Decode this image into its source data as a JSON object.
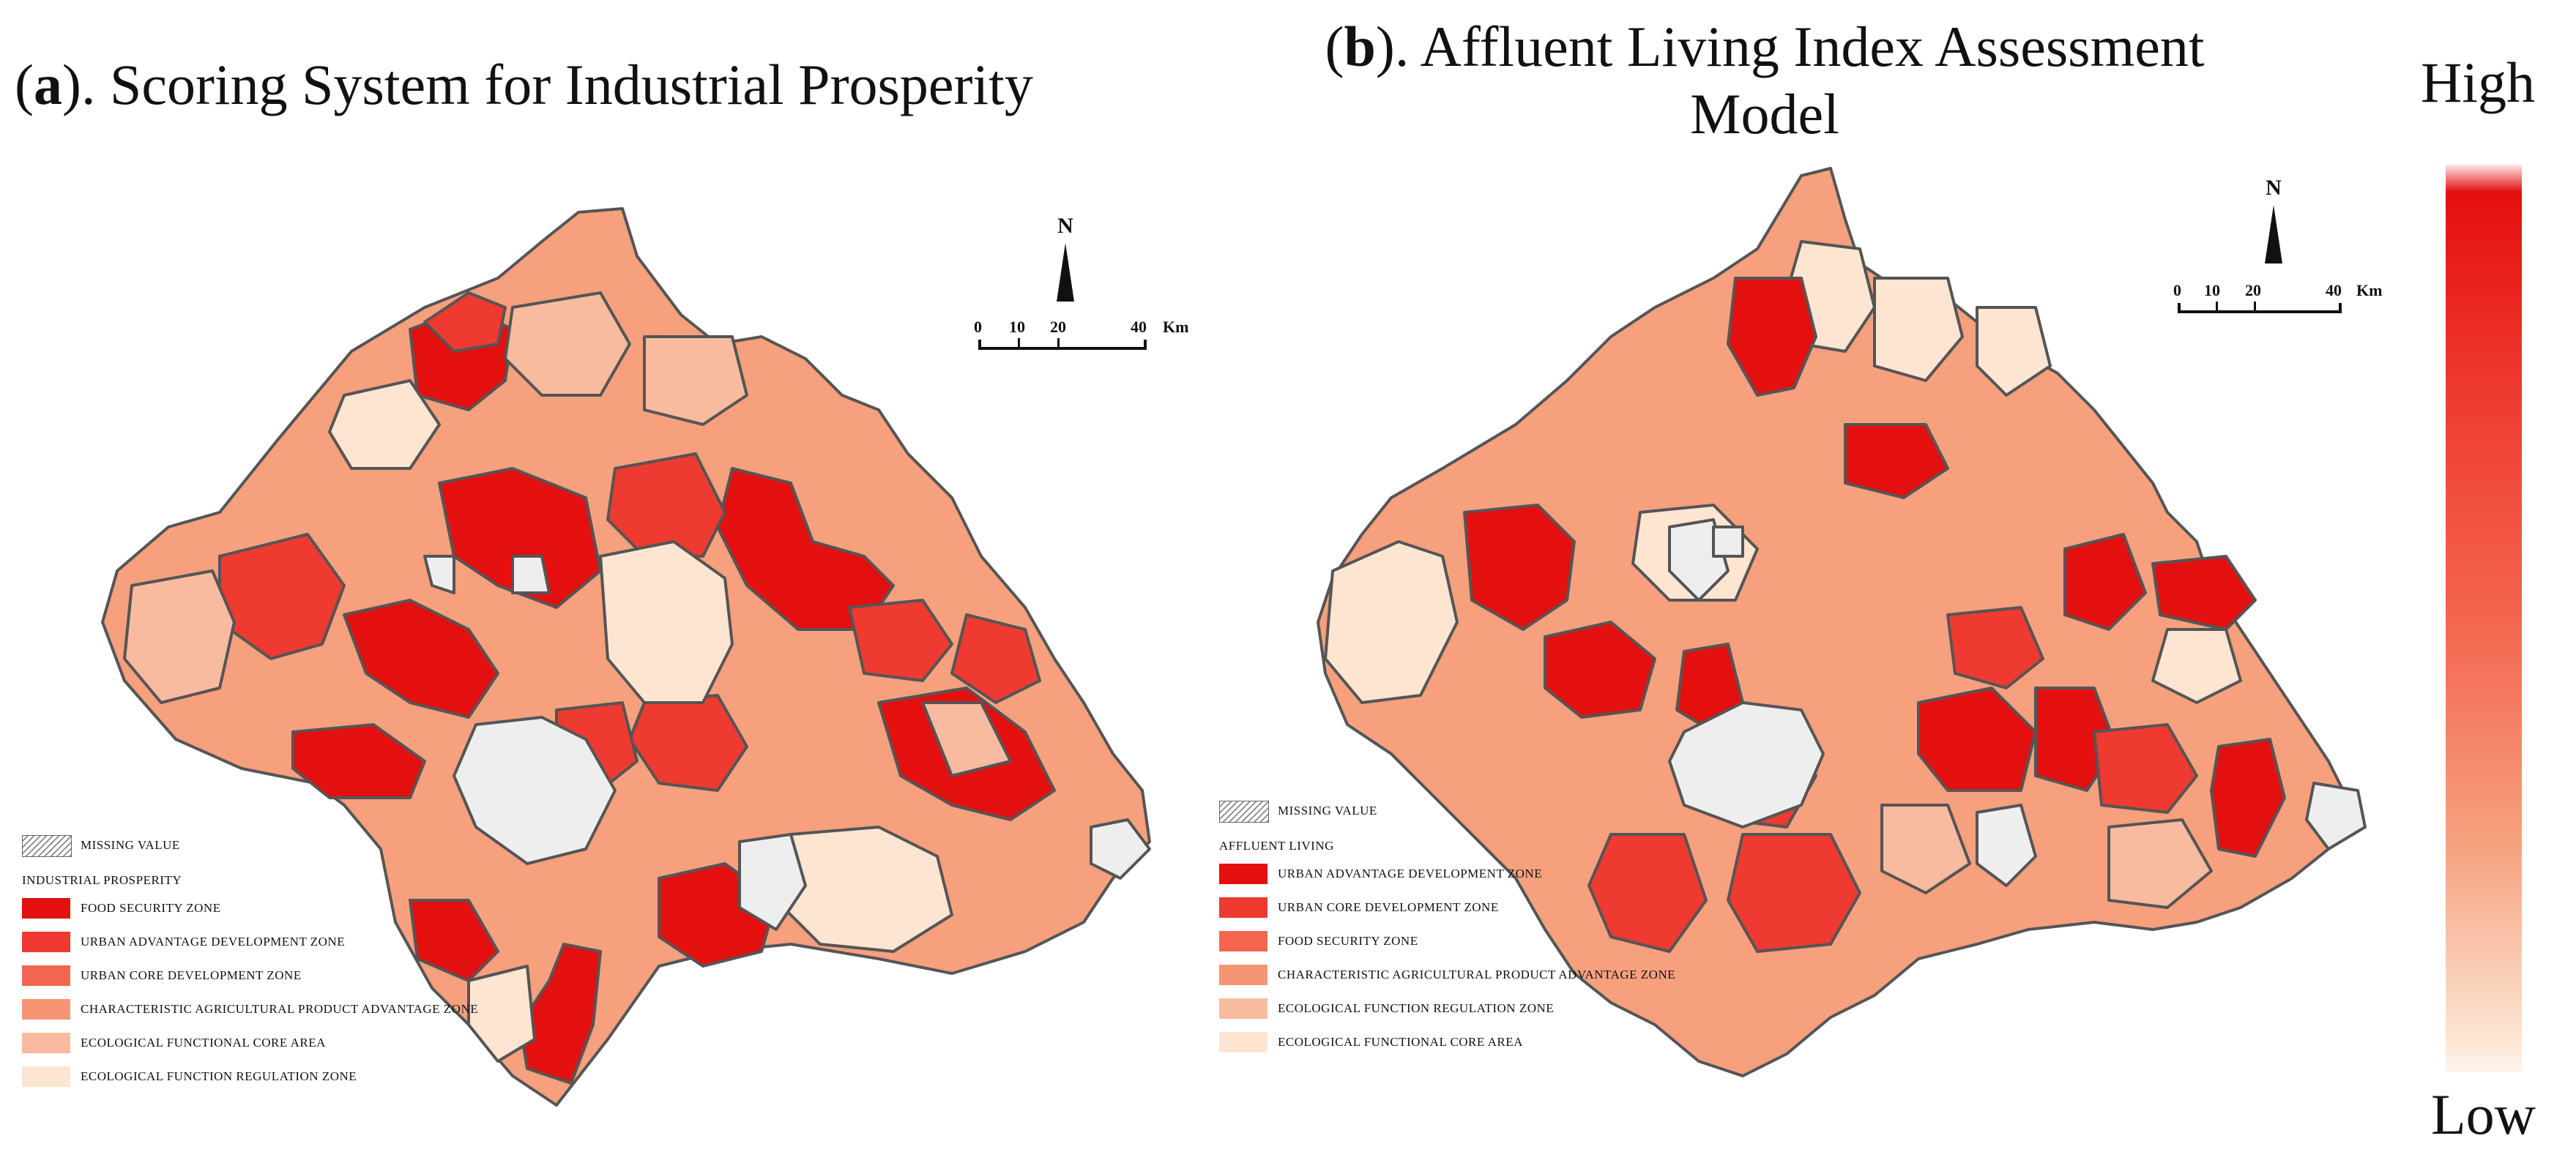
{
  "colors": {
    "missing_hatch": "#888888",
    "class_1": "#e40f0f",
    "class_2": "#ee3a30",
    "class_3": "#f3654f",
    "class_4": "#f69574",
    "class_5": "#f9bb9f",
    "class_6": "#fde5d2",
    "border": "#555555"
  },
  "panel_a": {
    "label_letter": "a",
    "title_rest": "). Scoring System for Industrial Prosperity",
    "north": "N",
    "scale_ticks": [
      "0",
      "10",
      "20",
      "40"
    ],
    "scale_unit": "Km",
    "legend": {
      "missing": "MISSING VALUE",
      "title": "INDUSTRIAL PROSPERITY",
      "items": [
        {
          "label": "FOOD SECURITY ZONE",
          "color": "#e40f0f"
        },
        {
          "label": "URBAN ADVANTAGE DEVELOPMENT ZONE",
          "color": "#ee3a30"
        },
        {
          "label": "URBAN CORE DEVELOPMENT ZONE",
          "color": "#f3654f"
        },
        {
          "label": "CHARACTERISTIC AGRICULTURAL PRODUCT ADVANTAGE ZONE",
          "color": "#f69574"
        },
        {
          "label": "ECOLOGICAL FUNCTIONAL CORE AREA",
          "color": "#f9bb9f"
        },
        {
          "label": "ECOLOGICAL FUNCTION REGULATION ZONE",
          "color": "#fde5d2"
        }
      ]
    }
  },
  "panel_b": {
    "label_letter": "b",
    "title_rest": "). Affluent Living Index Assessment Model",
    "north": "N",
    "scale_ticks": [
      "0",
      "10",
      "20",
      "40"
    ],
    "scale_unit": "Km",
    "legend": {
      "missing": "MISSING VALUE",
      "title": "AFFLUENT LIVING",
      "items": [
        {
          "label": "URBAN ADVANTAGE DEVELOPMENT ZONE",
          "color": "#e40f0f"
        },
        {
          "label": "URBAN CORE DEVELOPMENT ZONE",
          "color": "#ee3a30"
        },
        {
          "label": "FOOD SECURITY ZONE",
          "color": "#f3654f"
        },
        {
          "label": "CHARACTERISTIC AGRICULTURAL PRODUCT ADVANTAGE ZONE",
          "color": "#f69574"
        },
        {
          "label": "ECOLOGICAL FUNCTION REGULATION ZONE",
          "color": "#f9bb9f"
        },
        {
          "label": "ECOLOGICAL FUNCTIONAL CORE AREA",
          "color": "#fde5d2"
        }
      ]
    }
  },
  "colorbar": {
    "high_label": "High",
    "low_label": "Low"
  }
}
